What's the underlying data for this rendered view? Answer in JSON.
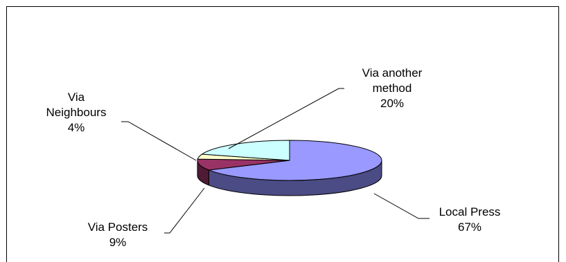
{
  "chart_data": {
    "type": "pie",
    "title": "",
    "slices": [
      {
        "label_lines": [
          "Local  Press"
        ],
        "value": 67,
        "value_label": "67%",
        "color": "#9999ff",
        "side": "#4b4b85"
      },
      {
        "label_lines": [
          "Via Posters"
        ],
        "value": 9,
        "value_label": "9%",
        "color": "#993366",
        "side": "#4e1a34"
      },
      {
        "label_lines": [
          "Via",
          "Neighbours"
        ],
        "value": 4,
        "value_label": "4%",
        "color": "#ffffcc",
        "side": "#8e8e72"
      },
      {
        "label_lines": [
          "Via another",
          "method"
        ],
        "value": 20,
        "value_label": "20%",
        "color": "#ccffff",
        "side": "#72908f"
      }
    ]
  }
}
